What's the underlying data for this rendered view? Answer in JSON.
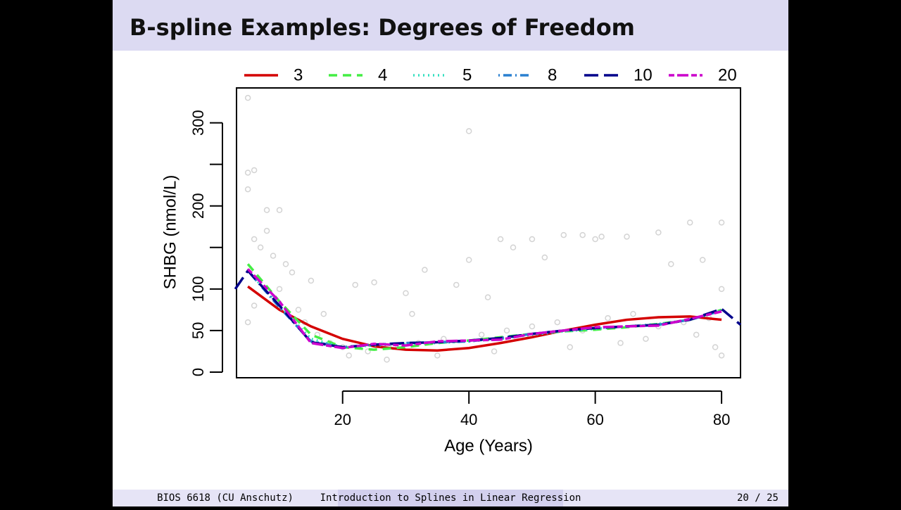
{
  "slide_title": "B-spline Examples: Degrees of Freedom",
  "footer": {
    "left": "BIOS 6618  (CU Anschutz)",
    "center": "Introduction to Splines in Linear Regression",
    "page": "20 / 25"
  },
  "chart_data": {
    "type": "line",
    "x_label": "Age (Years)",
    "y_label": "SHBG (nmol/L)",
    "xlim": [
      3.2,
      83
    ],
    "ylim": [
      -6.8,
      342
    ],
    "xticks": [
      20,
      40,
      60,
      80
    ],
    "yticks": [
      0,
      50,
      100,
      {
        "value": 150,
        "label": null
      },
      200,
      {
        "value": 250,
        "label": null
      },
      300
    ],
    "x": [
      3,
      5,
      10,
      15,
      20,
      25,
      30,
      35,
      40,
      45,
      50,
      55,
      60,
      65,
      70,
      75,
      80,
      83
    ],
    "points": {
      "color": "#d3d3d3",
      "x": [
        5,
        40,
        5,
        6,
        5,
        8,
        10,
        45,
        50,
        55,
        61,
        65,
        70,
        75,
        80,
        47,
        58,
        60,
        22,
        25,
        40,
        38,
        52,
        72,
        77,
        33,
        43,
        30,
        15,
        6,
        7,
        9,
        11,
        12,
        14,
        16,
        18,
        20,
        24,
        28,
        32,
        36,
        42,
        46,
        50,
        54,
        58,
        62,
        66,
        70,
        74,
        78,
        80,
        80,
        5,
        6,
        8,
        10,
        13,
        17,
        21,
        27,
        35,
        44,
        56,
        64,
        68,
        76,
        79,
        31
      ],
      "y": [
        330,
        290,
        240,
        243,
        220,
        195,
        195,
        160,
        160,
        165,
        163,
        163,
        168,
        180,
        180,
        150,
        165,
        160,
        105,
        108,
        135,
        105,
        138,
        130,
        135,
        123,
        90,
        95,
        110,
        160,
        150,
        140,
        130,
        120,
        60,
        45,
        35,
        30,
        25,
        30,
        35,
        40,
        45,
        50,
        55,
        60,
        50,
        65,
        70,
        55,
        60,
        65,
        100,
        20,
        60,
        80,
        170,
        100,
        75,
        70,
        20,
        15,
        20,
        25,
        30,
        35,
        40,
        45,
        30,
        70
      ]
    },
    "series": [
      {
        "name": "3",
        "color": "#d40000",
        "dash": "solid",
        "values": [
          null,
          103,
          75,
          55,
          40,
          31,
          27,
          26,
          29,
          35,
          42,
          50,
          57,
          63,
          66,
          67,
          63,
          null
        ]
      },
      {
        "name": "4",
        "color": "#44ee44",
        "dash": "dashed",
        "values": [
          null,
          130,
          85,
          45,
          30,
          27,
          30,
          35,
          38,
          42,
          46,
          49,
          51,
          54,
          58,
          63,
          75,
          null
        ]
      },
      {
        "name": "5",
        "color": "#34e0c0",
        "dash": "dotted",
        "values": [
          null,
          122,
          80,
          40,
          30,
          32,
          34,
          35,
          37,
          40,
          45,
          49,
          52,
          55,
          58,
          63,
          74,
          null
        ]
      },
      {
        "name": "8",
        "color": "#2a80d0",
        "dash": "dotdash",
        "values": [
          null,
          122,
          78,
          37,
          30,
          33,
          35,
          36,
          37,
          41,
          46,
          50,
          53,
          55,
          57,
          63,
          74,
          null
        ]
      },
      {
        "name": "10",
        "color": "#00008b",
        "dash": "longdash",
        "values": [
          100,
          122,
          80,
          36,
          30,
          33,
          35,
          36,
          38,
          41,
          46,
          50,
          53,
          55,
          57,
          63,
          76,
          57
        ]
      },
      {
        "name": "20",
        "color": "#cc00cc",
        "dash": "twodash",
        "values": [
          null,
          124,
          85,
          35,
          29,
          34,
          32,
          37,
          38,
          39,
          46,
          50,
          54,
          55,
          56,
          64,
          73,
          null
        ]
      }
    ]
  }
}
